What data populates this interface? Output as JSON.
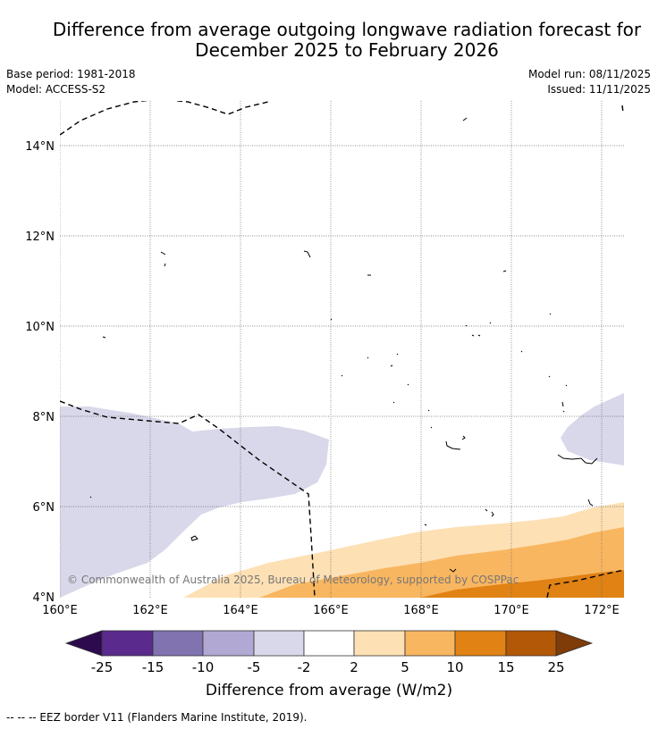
{
  "title": {
    "line1": "Difference from average outgoing longwave radiation forecast for",
    "line2": "December 2025 to February 2026"
  },
  "meta": {
    "base_period": "Base period: 1981-2018",
    "model": "Model: ACCESS-S2",
    "model_run": "Model run: 08/11/2025",
    "issued": "Issued: 11/11/2025"
  },
  "map": {
    "lat_labels": [
      "14°N",
      "12°N",
      "10°N",
      "8°N",
      "6°N",
      "4°N"
    ],
    "lon_labels": [
      "160°E",
      "162°E",
      "164°E",
      "166°E",
      "168°E",
      "170°E",
      "172°E"
    ],
    "copyright": "© Commonwealth of Australia 2025, Bureau of Meteorology, supported by COSPPac"
  },
  "colorbar": {
    "ticks": [
      "-25",
      "-15",
      "-10",
      "-5",
      "-2",
      "2",
      "5",
      "10",
      "15",
      "25"
    ],
    "label": "Difference from average (W/m2)",
    "colors": [
      "#2d0a4e",
      "#5a2a8c",
      "#8173b0",
      "#b1a9d3",
      "#d8d8ea",
      "#ffffff",
      "#fde0b4",
      "#f9b660",
      "#e08214",
      "#b35806",
      "#7f3b08"
    ]
  },
  "footer": {
    "legend_line": "--  --  -- EEZ border V11 (Flanders Marine Institute, 2019)."
  }
}
